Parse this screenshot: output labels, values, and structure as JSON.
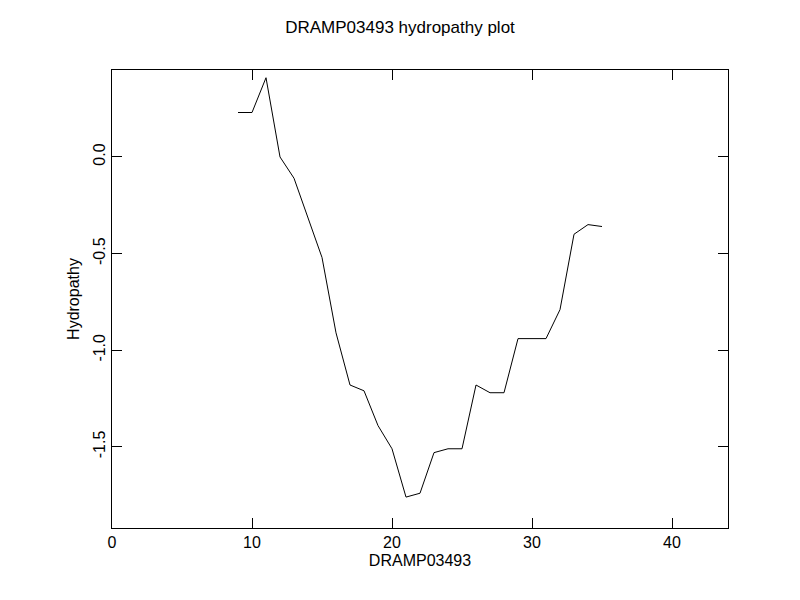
{
  "chart_data": {
    "type": "line",
    "title": "DRAMP03493 hydropathy plot",
    "x_label": "DRAMP03493",
    "y_label": "Hydropathy",
    "x": [
      9,
      10,
      11,
      12,
      13,
      14,
      15,
      16,
      17,
      18,
      19,
      20,
      21,
      22,
      23,
      24,
      25,
      26,
      27,
      28,
      29,
      30,
      31,
      32,
      33,
      34,
      35
    ],
    "values": [
      0.23,
      0.23,
      0.41,
      0.0,
      -0.11,
      -0.31,
      -0.52,
      -0.91,
      -1.18,
      -1.21,
      -1.39,
      -1.51,
      -1.76,
      -1.74,
      -1.53,
      -1.51,
      -1.51,
      -1.18,
      -1.22,
      -1.22,
      -0.94,
      -0.94,
      -0.94,
      -0.79,
      -0.4,
      -0.35,
      -0.36
    ],
    "color": "#000000",
    "xlim": [
      0,
      44
    ],
    "xticks": [
      0,
      10,
      20,
      30,
      40
    ],
    "ylim": [
      -1.92,
      0.45
    ],
    "yticks": [
      {
        "value": 0,
        "label": "0.0"
      },
      -0.5,
      {
        "value": -1,
        "label": "-1.0"
      },
      -1.5
    ],
    "grid": false
  }
}
